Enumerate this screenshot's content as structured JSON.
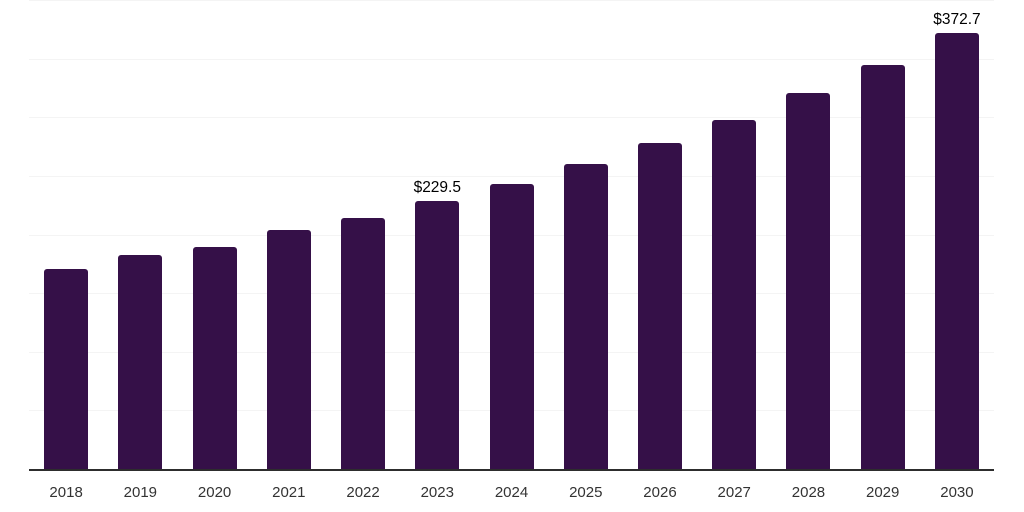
{
  "chart_data": {
    "type": "bar",
    "title": "",
    "xlabel": "",
    "ylabel": "",
    "categories": [
      "2018",
      "2019",
      "2020",
      "2021",
      "2022",
      "2023",
      "2024",
      "2025",
      "2026",
      "2027",
      "2028",
      "2029",
      "2030"
    ],
    "values": [
      171.8,
      183.8,
      190.6,
      205.0,
      215.2,
      229.5,
      244.0,
      261.0,
      278.8,
      298.3,
      321.3,
      345.1,
      372.7
    ],
    "data_labels": {
      "2023": "$229.5",
      "2030": "$372.7"
    },
    "ylim": [
      0,
      400
    ],
    "gridline_step": 50,
    "grid": "horizontal",
    "legend_position": "none",
    "y_axis_visible": false,
    "colors": {
      "bar": "#351048",
      "axis_line": "#2d2d2d",
      "gridline": "#f4f4f4",
      "tick_label": "#333333",
      "data_label": "#000000",
      "background": "#ffffff"
    }
  }
}
